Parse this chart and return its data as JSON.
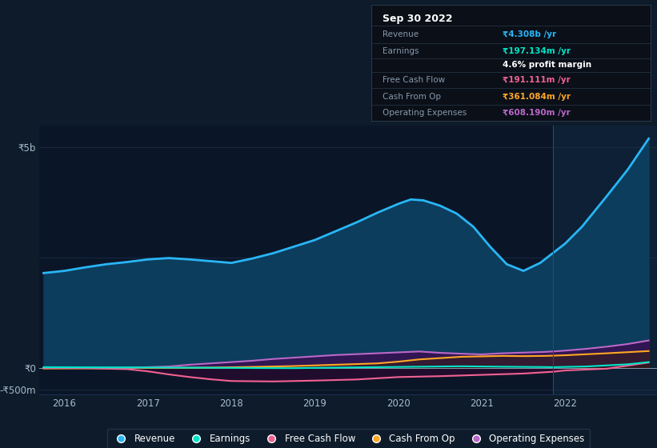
{
  "bg_color": "#0d1b2a",
  "plot_bg_color": "#0a1628",
  "grid_color": "#1e3050",
  "highlight_bg": "#0d2035",
  "ylim": [
    -600,
    5500
  ],
  "xlim": [
    2015.7,
    2023.1
  ],
  "xticks": [
    2016,
    2017,
    2018,
    2019,
    2020,
    2021,
    2022
  ],
  "highlight_x_start": 2021.85,
  "revenue_color": "#29b6f6",
  "revenue_fill": "#0d3d5c",
  "earnings_color": "#00e5c8",
  "free_cashflow_color": "#f06292",
  "cash_from_op_color": "#ffa726",
  "operating_exp_color": "#ba68c8",
  "operating_exp_fill": "#3a0d50",
  "info_box": {
    "title": "Sep 30 2022",
    "revenue_label": "Revenue",
    "revenue_value": "₹4.308b /yr",
    "revenue_color": "#29b6f6",
    "earnings_label": "Earnings",
    "earnings_value": "₹197.134m /yr",
    "earnings_color": "#00e5c8",
    "margin_text": "4.6% profit margin",
    "free_cf_label": "Free Cash Flow",
    "free_cf_value": "₹191.111m /yr",
    "free_cf_color": "#f06292",
    "cash_op_label": "Cash From Op",
    "cash_op_value": "₹361.084m /yr",
    "cash_op_color": "#ffa726",
    "op_exp_label": "Operating Expenses",
    "op_exp_value": "₹608.190m /yr",
    "op_exp_color": "#ba68c8"
  },
  "legend": [
    {
      "label": "Revenue",
      "color": "#29b6f6"
    },
    {
      "label": "Earnings",
      "color": "#00e5c8"
    },
    {
      "label": "Free Cash Flow",
      "color": "#f06292"
    },
    {
      "label": "Cash From Op",
      "color": "#ffa726"
    },
    {
      "label": "Operating Expenses",
      "color": "#ba68c8"
    }
  ],
  "revenue_x": [
    2015.75,
    2016.0,
    2016.25,
    2016.5,
    2016.75,
    2017.0,
    2017.25,
    2017.5,
    2017.75,
    2018.0,
    2018.25,
    2018.5,
    2018.75,
    2019.0,
    2019.25,
    2019.5,
    2019.75,
    2020.0,
    2020.15,
    2020.3,
    2020.5,
    2020.7,
    2020.9,
    2021.1,
    2021.3,
    2021.5,
    2021.7,
    2021.85,
    2022.0,
    2022.2,
    2022.5,
    2022.75,
    2023.0
  ],
  "revenue_y": [
    2150,
    2200,
    2280,
    2350,
    2400,
    2460,
    2490,
    2460,
    2420,
    2380,
    2480,
    2600,
    2750,
    2900,
    3100,
    3300,
    3520,
    3720,
    3820,
    3800,
    3680,
    3500,
    3200,
    2750,
    2350,
    2200,
    2380,
    2600,
    2820,
    3200,
    3900,
    4500,
    5200
  ],
  "earnings_x": [
    2015.75,
    2016.25,
    2016.75,
    2017.25,
    2017.75,
    2018.25,
    2018.75,
    2019.25,
    2019.75,
    2020.25,
    2020.75,
    2021.25,
    2021.75,
    2021.85,
    2022.25,
    2022.75,
    2023.0
  ],
  "earnings_y": [
    15,
    12,
    10,
    5,
    2,
    -5,
    -8,
    5,
    15,
    25,
    35,
    25,
    18,
    15,
    30,
    80,
    130
  ],
  "free_cf_x": [
    2015.75,
    2016.25,
    2016.75,
    2017.0,
    2017.25,
    2017.5,
    2017.75,
    2018.0,
    2018.5,
    2019.0,
    2019.5,
    2020.0,
    2020.5,
    2021.0,
    2021.5,
    2021.85,
    2022.0,
    2022.5,
    2023.0
  ],
  "free_cf_y": [
    -5,
    -10,
    -30,
    -80,
    -150,
    -210,
    -260,
    -300,
    -310,
    -290,
    -265,
    -210,
    -190,
    -160,
    -130,
    -90,
    -60,
    -20,
    120
  ],
  "cash_op_x": [
    2015.75,
    2016.25,
    2016.75,
    2017.25,
    2017.75,
    2018.25,
    2018.75,
    2019.25,
    2019.75,
    2020.0,
    2020.25,
    2020.5,
    2020.75,
    2021.0,
    2021.25,
    2021.5,
    2021.75,
    2021.85,
    2022.0,
    2022.5,
    2023.0
  ],
  "cash_op_y": [
    -15,
    -10,
    -5,
    0,
    5,
    20,
    40,
    70,
    100,
    140,
    190,
    220,
    250,
    260,
    270,
    265,
    270,
    275,
    285,
    330,
    380
  ],
  "op_exp_x": [
    2015.75,
    2016.25,
    2016.75,
    2017.25,
    2017.5,
    2017.75,
    2018.0,
    2018.25,
    2018.5,
    2018.75,
    2019.0,
    2019.25,
    2019.5,
    2019.75,
    2020.0,
    2020.25,
    2020.5,
    2020.75,
    2021.0,
    2021.25,
    2021.5,
    2021.75,
    2021.85,
    2022.0,
    2022.25,
    2022.5,
    2022.75,
    2023.0
  ],
  "op_exp_y": [
    0,
    0,
    0,
    30,
    70,
    100,
    130,
    160,
    200,
    230,
    260,
    290,
    310,
    330,
    350,
    370,
    340,
    320,
    305,
    330,
    345,
    360,
    370,
    390,
    430,
    480,
    540,
    620
  ]
}
